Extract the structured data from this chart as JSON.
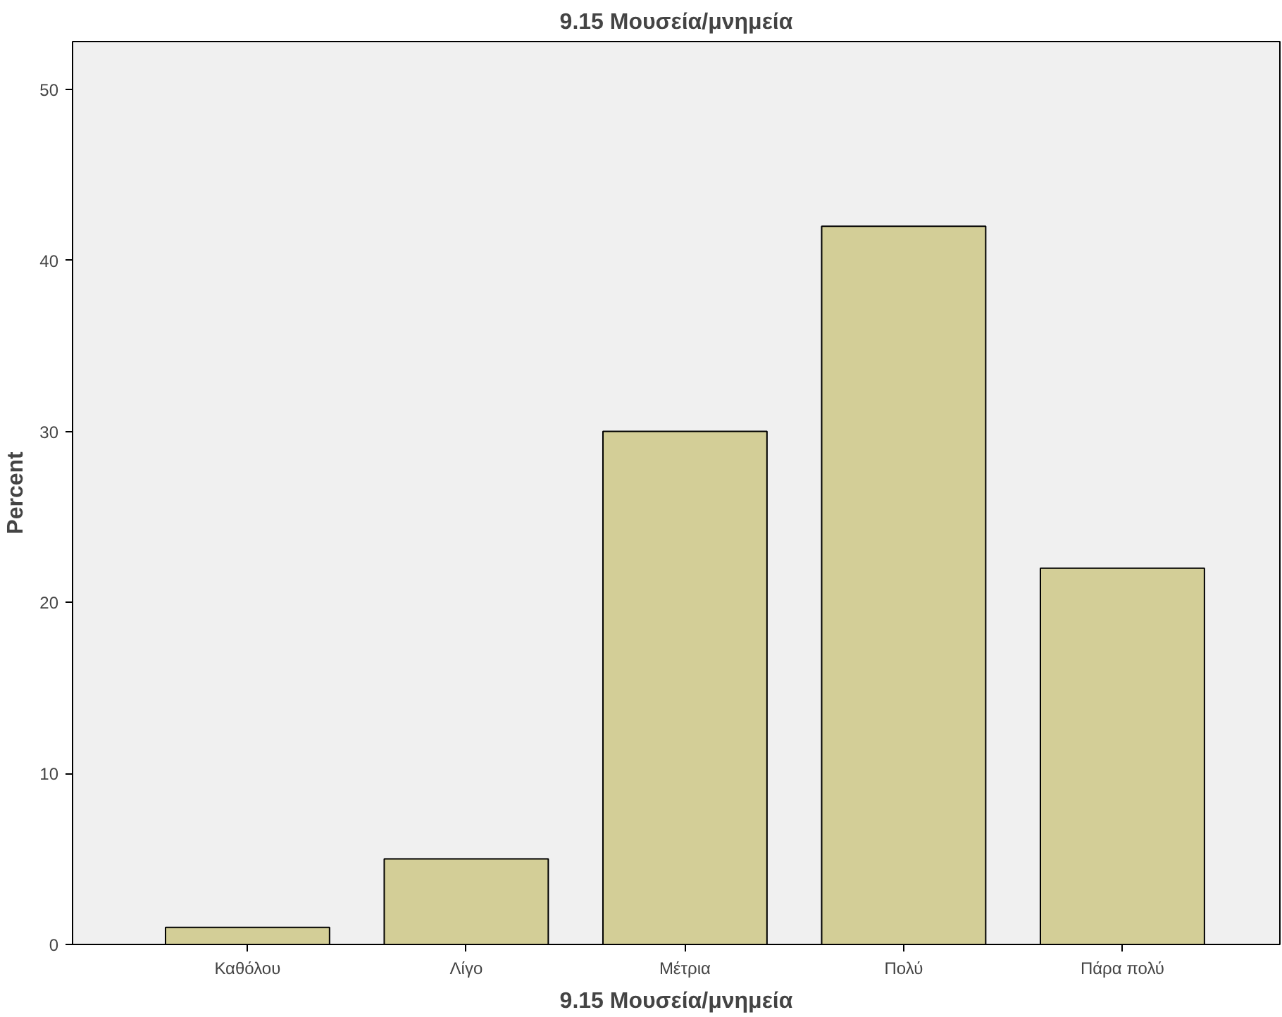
{
  "chart_data": {
    "type": "bar",
    "title": "9.15 Μουσεία/μνημεία",
    "xlabel": "9.15 Μουσεία/μνημεία",
    "ylabel": "Percent",
    "categories": [
      "Καθόλου",
      "Λίγο",
      "Μέτρια",
      "Πολύ",
      "Πάρα πολύ"
    ],
    "values": [
      1,
      5,
      30,
      42,
      22
    ],
    "color": "#d3ce97",
    "ylim": [
      0,
      52.8
    ],
    "yticks": [
      0,
      10,
      20,
      30,
      40,
      50
    ],
    "grid": false
  }
}
